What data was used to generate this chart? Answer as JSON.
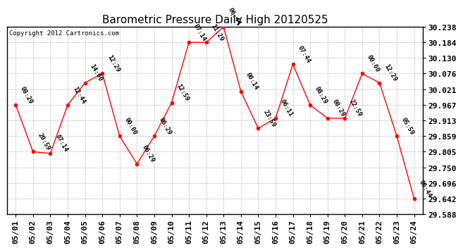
{
  "title": "Barometric Pressure Daily High 20120525",
  "copyright": "Copyright 2012 Cartronics.com",
  "x_labels": [
    "05/01",
    "05/02",
    "05/03",
    "05/04",
    "05/05",
    "05/06",
    "05/07",
    "05/08",
    "05/09",
    "05/10",
    "05/11",
    "05/12",
    "05/13",
    "05/14",
    "05/15",
    "05/16",
    "05/17",
    "05/18",
    "05/19",
    "05/20",
    "05/21",
    "05/22",
    "05/23",
    "05/24"
  ],
  "y_values": [
    29.967,
    29.805,
    29.799,
    29.967,
    30.044,
    30.076,
    29.859,
    29.763,
    29.859,
    29.975,
    30.184,
    30.184,
    30.238,
    30.014,
    29.886,
    29.921,
    30.108,
    29.967,
    29.921,
    29.921,
    30.076,
    30.044,
    29.859,
    29.642
  ],
  "time_labels": [
    "08:29",
    "20:59",
    "07:14",
    "12:44",
    "14:00",
    "12:29",
    "00:00",
    "06:29",
    "06:29",
    "12:59",
    "07:14",
    "11:29",
    "06:44",
    "00:14",
    "23:59",
    "06:11",
    "07:44",
    "08:29",
    "08:29",
    "22:59",
    "00:00",
    "12:29",
    "05:59",
    "06:44"
  ],
  "ylim_min": 29.588,
  "ylim_max": 30.238,
  "yticks": [
    29.588,
    29.642,
    29.696,
    29.75,
    29.805,
    29.859,
    29.913,
    29.967,
    30.021,
    30.076,
    30.13,
    30.184,
    30.238
  ],
  "line_color": "red",
  "marker_color": "red",
  "marker_size": 3,
  "bg_color": "#ffffff",
  "grid_color": "#bbbbbb",
  "title_fontsize": 11,
  "tick_fontsize": 8,
  "annot_fontsize": 6.5,
  "copyright_fontsize": 6.5
}
